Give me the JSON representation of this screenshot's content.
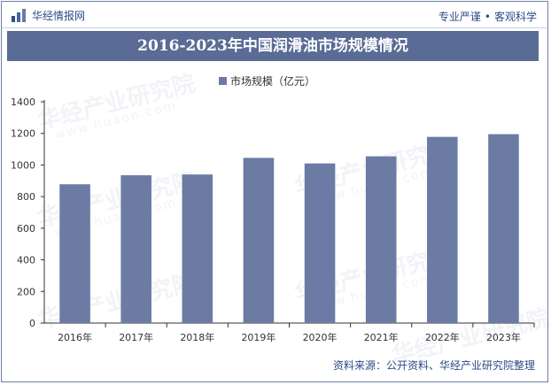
{
  "header": {
    "brand_name": "华经情报网",
    "slogan_left": "专业严谨",
    "slogan_separator": "•",
    "slogan_right": "客观科学"
  },
  "watermark": {
    "text": "华经产业研究院",
    "url": "www.huaon.com"
  },
  "footer": {
    "source": "资料来源：公开资料、华经产业研究院整理"
  },
  "colors": {
    "bar": "#6b7ba4",
    "title_bg": "#5a6b95",
    "accent": "#2f4a86"
  },
  "chart_data": {
    "type": "bar",
    "title": "2016-2023年中国润滑油市场规模情况",
    "categories": [
      "2016年",
      "2017年",
      "2018年",
      "2019年",
      "2020年",
      "2021年",
      "2022年",
      "2023年"
    ],
    "series": [
      {
        "name": "市场规模（亿元）",
        "values": [
          878,
          935,
          940,
          1045,
          1010,
          1055,
          1178,
          1195
        ]
      }
    ],
    "xlabel": "",
    "ylabel": "",
    "ylim": [
      0,
      1400
    ],
    "yticks": [
      0,
      200,
      400,
      600,
      800,
      1000,
      1200,
      1400
    ],
    "grid": false,
    "legend_position": "top-center"
  }
}
